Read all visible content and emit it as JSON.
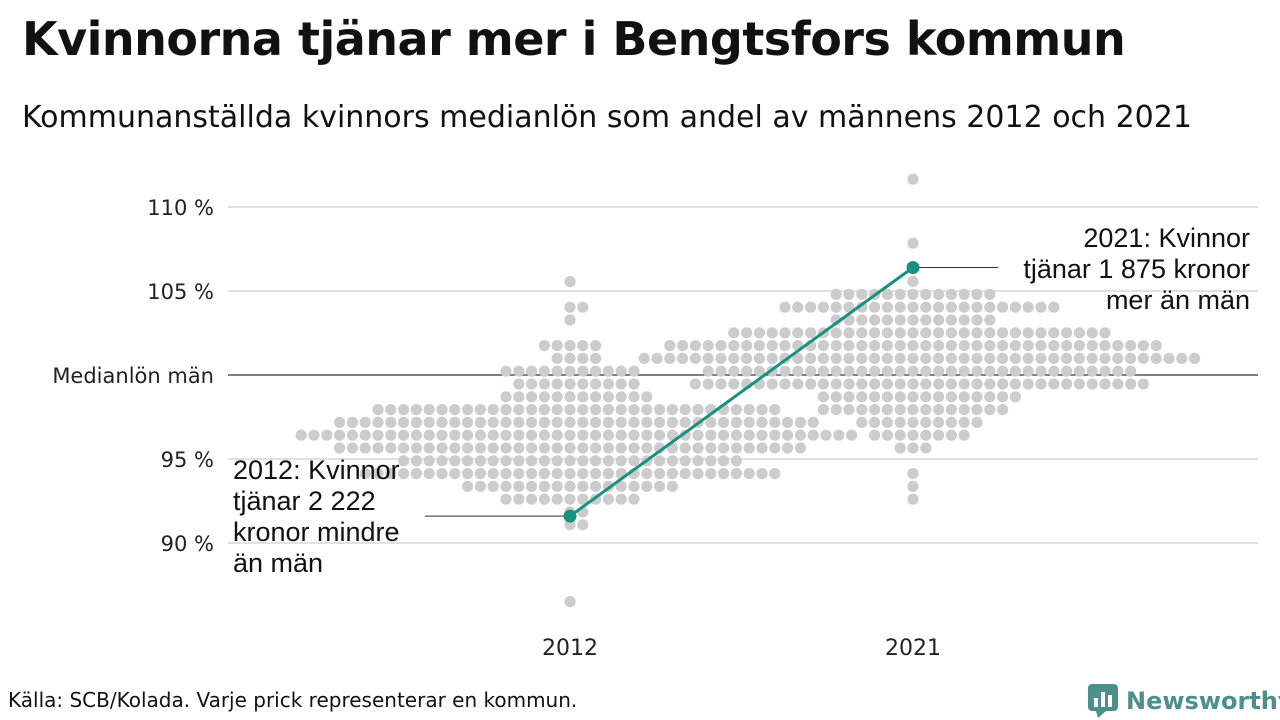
{
  "title": "Kvinnorna tjänar mer i Bengtsfors kommun",
  "subtitle": "Kommunanställda kvinnors medianlön som andel av männens 2012 och 2021",
  "source": "Källa: SCB/Kolada. Varje prick representerar en kommun.",
  "brand": {
    "name": "Newsworthy",
    "icon": "newsworthy-logo-icon"
  },
  "colors": {
    "dots": "#cccccc",
    "highlight": "#1a9080",
    "grid": "#e0e0e0",
    "baseline": "#333333"
  },
  "chart_data": {
    "type": "scatter",
    "subtype": "beeswarm",
    "categories": [
      "2012",
      "2021"
    ],
    "ylim": [
      86,
      111.5
    ],
    "yticks": [
      {
        "value": 110,
        "label": "110 %"
      },
      {
        "value": 105,
        "label": "105 %"
      },
      {
        "value": 100,
        "label": "Medianlön män"
      },
      {
        "value": 95,
        "label": "95 %"
      },
      {
        "value": 90,
        "label": "90 %"
      }
    ],
    "grid": true,
    "distribution_note": "One dot per municipality (approx. 290 per year), 2012 centred near 96 %, 2021 centred near 101 %",
    "distributions": [
      {
        "category": "2012",
        "count": 290,
        "center": 96.2,
        "spread": 2.4,
        "min": 86.5,
        "max": 105.2
      },
      {
        "category": "2021",
        "count": 290,
        "center": 101.2,
        "spread": 2.1,
        "min": 92.6,
        "max": 111.4
      }
    ],
    "highlight": {
      "name": "Bengtsfors",
      "values": [
        {
          "x": "2012",
          "y": 91.6
        },
        {
          "x": "2021",
          "y": 106.4
        }
      ],
      "color": "#1a9080"
    },
    "annotations": {
      "a2012": [
        "2012: Kvinnor",
        "tjänar 2 222",
        "kronor mindre",
        "än män"
      ],
      "a2021": [
        "2021: Kvinnor",
        "tjänar 1 875 kronor",
        "mer än män"
      ]
    }
  }
}
